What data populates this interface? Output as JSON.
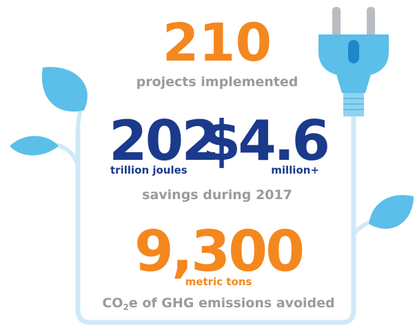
{
  "projects": {
    "value": "210",
    "label": "projects implemented"
  },
  "energy": {
    "value": "202",
    "label": "trillion joules"
  },
  "money": {
    "value": "$4.6",
    "label": "million+"
  },
  "savings_caption": "savings during 2017",
  "emissions": {
    "value": "9,300",
    "label": "metric tons"
  },
  "emissions_caption": {
    "prefix": "CO",
    "subscript": "2",
    "suffix": "e of GHG emissions avoided"
  }
}
